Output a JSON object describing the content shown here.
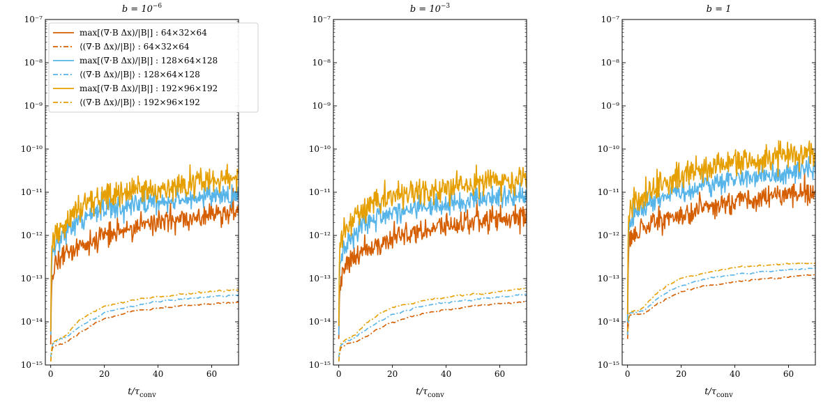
{
  "figure": {
    "xlabel": "t/τ_conv",
    "xlabel_main": "t/τ",
    "xlabel_sub": "conv"
  },
  "legend": {
    "entries": [
      {
        "label": "max[(∇·B Δx)/|B|] : 64×32×64",
        "color": "#D55E00",
        "style": "solid"
      },
      {
        "label": "⟨(∇·B Δx)/|B|⟩ : 64×32×64",
        "color": "#D55E00",
        "style": "dashdot"
      },
      {
        "label": "max[(∇·B Δx)/|B|] : 128×64×128",
        "color": "#56B4E9",
        "style": "solid"
      },
      {
        "label": "⟨(∇·B Δx)/|B|⟩ : 128×64×128",
        "color": "#56B4E9",
        "style": "dashdot"
      },
      {
        "label": "max[(∇·B Δx)/|B|] : 192×96×192",
        "color": "#E69F00",
        "style": "solid"
      },
      {
        "label": "⟨(∇·B Δx)/|B|⟩ : 192×96×192",
        "color": "#E69F00",
        "style": "dashdot"
      }
    ]
  },
  "chart_data": [
    {
      "type": "line",
      "title": "b = 10⁻⁶",
      "title_text": "b = 10",
      "title_exp": "−6",
      "xlabel": "t/τ_conv",
      "ylabel": "",
      "xlim": [
        -2,
        70
      ],
      "ylim": [
        1e-15,
        1e-07
      ],
      "yscale": "log",
      "xticks": [
        0,
        20,
        40,
        60
      ],
      "yticks": [
        "10⁻¹⁵",
        "10⁻¹⁴",
        "10⁻¹³",
        "10⁻¹²",
        "10⁻¹¹",
        "10⁻¹⁰",
        "10⁻⁹",
        "10⁻⁸",
        "10⁻⁷"
      ],
      "legend_position": "upper-left",
      "series": [
        {
          "name": "max[(∇·B Δx)/|B|] : 64×32×64",
          "color": "#D55E00",
          "style": "solid",
          "noise": 0.13,
          "x": [
            0,
            0.3,
            0.8,
            2,
            5,
            10,
            15,
            20,
            30,
            40,
            50,
            60,
            70
          ],
          "y": [
            3e-15,
            7e-14,
            1.2e-13,
            2.5e-13,
            3e-13,
            5e-13,
            7e-13,
            1e-12,
            1.5e-12,
            2e-12,
            2.5e-12,
            3e-12,
            3.5e-12
          ]
        },
        {
          "name": "⟨(∇·B Δx)/|B|⟩ : 64×32×64",
          "color": "#D55E00",
          "style": "dashdot",
          "noise": 0.02,
          "x": [
            0,
            0.5,
            1,
            3,
            6,
            10,
            15,
            20,
            30,
            40,
            50,
            60,
            70
          ],
          "y": [
            1.2e-15,
            2.4e-15,
            2.7e-15,
            3e-15,
            3.5e-15,
            5e-15,
            8e-15,
            1.2e-14,
            1.7e-14,
            2.1e-14,
            2.4e-14,
            2.6e-14,
            2.8e-14
          ]
        },
        {
          "name": "max[(∇·B Δx)/|B|] : 128×64×128",
          "color": "#56B4E9",
          "style": "solid",
          "noise": 0.13,
          "x": [
            0,
            0.3,
            0.8,
            2,
            5,
            10,
            15,
            20,
            30,
            40,
            50,
            60,
            70
          ],
          "y": [
            5e-15,
            2e-13,
            4e-13,
            6e-13,
            1e-12,
            2e-12,
            3e-12,
            4e-12,
            5e-12,
            6e-12,
            7e-12,
            8e-12,
            9e-12
          ]
        },
        {
          "name": "⟨(∇·B Δx)/|B|⟩ : 128×64×128",
          "color": "#56B4E9",
          "style": "dashdot",
          "noise": 0.02,
          "x": [
            0,
            0.5,
            1,
            3,
            6,
            10,
            15,
            20,
            30,
            40,
            50,
            60,
            70
          ],
          "y": [
            1.5e-15,
            2.8e-15,
            3.2e-15,
            3.8e-15,
            4.5e-15,
            7e-15,
            1.1e-14,
            1.6e-14,
            2.3e-14,
            2.9e-14,
            3.4e-14,
            3.8e-14,
            4.2e-14
          ]
        },
        {
          "name": "max[(∇·B Δx)/|B|] : 192×96×192",
          "color": "#E69F00",
          "style": "solid",
          "noise": 0.16,
          "x": [
            0,
            0.3,
            0.8,
            2,
            5,
            10,
            15,
            20,
            30,
            40,
            50,
            60,
            70
          ],
          "y": [
            6e-15,
            5e-13,
            8e-13,
            1e-12,
            2e-12,
            4e-12,
            6e-12,
            8e-12,
            1e-11,
            1.3e-11,
            1.5e-11,
            1.8e-11,
            2e-11
          ]
        },
        {
          "name": "⟨(∇·B Δx)/|B|⟩ : 192×96×192",
          "color": "#E69F00",
          "style": "dashdot",
          "noise": 0.02,
          "x": [
            0,
            0.5,
            1,
            3,
            6,
            10,
            15,
            20,
            30,
            40,
            50,
            60,
            70
          ],
          "y": [
            1.2e-15,
            3e-15,
            3.5e-15,
            4e-15,
            5e-15,
            1e-14,
            1.6e-14,
            2.3e-14,
            3.1e-14,
            3.8e-14,
            4.4e-14,
            5e-14,
            5.6e-14
          ]
        }
      ]
    },
    {
      "type": "line",
      "title": "b = 10⁻³",
      "title_text": "b = 10",
      "title_exp": "−3",
      "xlabel": "t/τ_conv",
      "ylabel": "",
      "xlim": [
        -2,
        70
      ],
      "ylim": [
        1e-15,
        1e-07
      ],
      "yscale": "log",
      "xticks": [
        0,
        20,
        40,
        60
      ],
      "yticks": [
        "10⁻¹⁵",
        "10⁻¹⁴",
        "10⁻¹³",
        "10⁻¹²",
        "10⁻¹¹",
        "10⁻¹⁰",
        "10⁻⁹",
        "10⁻⁸",
        "10⁻⁷"
      ],
      "legend_position": "none",
      "series": [
        {
          "name": "max[(∇·B Δx)/|B|] : 64×32×64",
          "color": "#D55E00",
          "style": "solid",
          "noise": 0.13,
          "x": [
            0,
            0.3,
            0.8,
            2,
            5,
            10,
            15,
            20,
            30,
            40,
            50,
            60,
            70
          ],
          "y": [
            4e-15,
            6e-14,
            1e-13,
            2e-13,
            3e-13,
            4.5e-13,
            6e-13,
            8e-13,
            1.2e-12,
            1.6e-12,
            2e-12,
            2.4e-12,
            2.6e-12
          ]
        },
        {
          "name": "⟨(∇·B Δx)/|B|⟩ : 64×32×64",
          "color": "#D55E00",
          "style": "dashdot",
          "noise": 0.02,
          "x": [
            0,
            0.5,
            1,
            3,
            6,
            10,
            15,
            20,
            30,
            40,
            50,
            60,
            70
          ],
          "y": [
            1.2e-15,
            2.3e-15,
            2.6e-15,
            3e-15,
            3.4e-15,
            4.5e-15,
            7e-15,
            1e-14,
            1.5e-14,
            1.9e-14,
            2.3e-14,
            2.6e-14,
            3e-14
          ]
        },
        {
          "name": "max[(∇·B Δx)/|B|] : 128×64×128",
          "color": "#56B4E9",
          "style": "solid",
          "noise": 0.13,
          "x": [
            0,
            0.3,
            0.8,
            2,
            5,
            10,
            15,
            20,
            30,
            40,
            50,
            60,
            70
          ],
          "y": [
            5e-15,
            2e-13,
            3e-13,
            5e-13,
            9e-13,
            1.8e-12,
            2.8e-12,
            3.5e-12,
            4.5e-12,
            5.5e-12,
            6.5e-12,
            7.5e-12,
            9e-12
          ]
        },
        {
          "name": "⟨(∇·B Δx)/|B|⟩ : 128×64×128",
          "color": "#56B4E9",
          "style": "dashdot",
          "noise": 0.02,
          "x": [
            0,
            0.5,
            1,
            3,
            6,
            10,
            15,
            20,
            30,
            40,
            50,
            60,
            70
          ],
          "y": [
            1.5e-15,
            2.6e-15,
            3e-15,
            3.6e-15,
            4.3e-15,
            6.5e-15,
            1e-14,
            1.5e-14,
            2.2e-14,
            2.8e-14,
            3.3e-14,
            3.8e-14,
            4.3e-14
          ]
        },
        {
          "name": "max[(∇·B Δx)/|B|] : 192×96×192",
          "color": "#E69F00",
          "style": "solid",
          "noise": 0.16,
          "x": [
            0,
            0.3,
            0.8,
            2,
            5,
            10,
            15,
            20,
            30,
            40,
            50,
            60,
            70
          ],
          "y": [
            8e-15,
            6e-13,
            9e-13,
            1.1e-12,
            2e-12,
            4e-12,
            6e-12,
            8e-12,
            1e-11,
            1.2e-11,
            1.5e-11,
            1.8e-11,
            2.2e-11
          ]
        },
        {
          "name": "⟨(∇·B Δx)/|B|⟩ : 192×96×192",
          "color": "#E69F00",
          "style": "dashdot",
          "noise": 0.02,
          "x": [
            0,
            0.5,
            1,
            3,
            6,
            10,
            15,
            20,
            30,
            40,
            50,
            60,
            70
          ],
          "y": [
            1.2e-15,
            2.8e-15,
            3.3e-15,
            4e-15,
            5e-15,
            9e-15,
            1.5e-14,
            2.2e-14,
            3e-14,
            3.7e-14,
            4.4e-14,
            5e-14,
            5.8e-14
          ]
        }
      ]
    },
    {
      "type": "line",
      "title": "b = 1",
      "title_text": "b = 1",
      "title_exp": "",
      "xlabel": "t/τ_conv",
      "ylabel": "",
      "xlim": [
        -2,
        70
      ],
      "ylim": [
        1e-15,
        1e-07
      ],
      "yscale": "log",
      "xticks": [
        0,
        20,
        40,
        60
      ],
      "yticks": [
        "10⁻¹⁵",
        "10⁻¹⁴",
        "10⁻¹³",
        "10⁻¹²",
        "10⁻¹¹",
        "10⁻¹⁰",
        "10⁻⁹",
        "10⁻⁸",
        "10⁻⁷"
      ],
      "legend_position": "none",
      "series": [
        {
          "name": "max[(∇·B Δx)/|B|] : 64×32×64",
          "color": "#D55E00",
          "style": "solid",
          "noise": 0.13,
          "x": [
            0,
            0.3,
            0.8,
            2,
            5,
            10,
            15,
            20,
            30,
            40,
            50,
            60,
            70
          ],
          "y": [
            5e-15,
            4e-13,
            8e-13,
            1.2e-12,
            1.5e-12,
            2e-12,
            2.5e-12,
            3e-12,
            4.5e-12,
            6e-12,
            7.5e-12,
            9e-12,
            1e-11
          ]
        },
        {
          "name": "⟨(∇·B Δx)/|B|⟩ : 64×32×64",
          "color": "#D55E00",
          "style": "dashdot",
          "noise": 0.02,
          "x": [
            0,
            0.5,
            1,
            3,
            6,
            10,
            15,
            20,
            30,
            40,
            50,
            60,
            70
          ],
          "y": [
            4e-15,
            1.3e-14,
            1.45e-14,
            1.5e-14,
            1.55e-14,
            2.3e-14,
            3.5e-14,
            5e-14,
            7e-14,
            8.5e-14,
            1e-13,
            1.1e-13,
            1.25e-13
          ]
        },
        {
          "name": "max[(∇·B Δx)/|B|] : 128×64×128",
          "color": "#56B4E9",
          "style": "solid",
          "noise": 0.13,
          "x": [
            0,
            0.3,
            0.8,
            2,
            5,
            10,
            15,
            20,
            30,
            40,
            50,
            60,
            70
          ],
          "y": [
            1e-14,
            1.2e-12,
            2e-12,
            2.8e-12,
            4e-12,
            6e-12,
            8e-12,
            1e-11,
            1.5e-11,
            2e-11,
            2.5e-11,
            3e-11,
            3.5e-11
          ]
        },
        {
          "name": "⟨(∇·B Δx)/|B|⟩ : 128×64×128",
          "color": "#56B4E9",
          "style": "dashdot",
          "noise": 0.02,
          "x": [
            0,
            0.5,
            1,
            3,
            6,
            10,
            15,
            20,
            30,
            40,
            50,
            60,
            70
          ],
          "y": [
            5e-15,
            1.4e-14,
            1.6e-14,
            1.7e-14,
            1.8e-14,
            3e-14,
            5e-14,
            7e-14,
            1e-13,
            1.25e-13,
            1.45e-13,
            1.6e-13,
            1.75e-13
          ]
        },
        {
          "name": "max[(∇·B Δx)/|B|] : 192×96×192",
          "color": "#E69F00",
          "style": "solid",
          "noise": 0.16,
          "x": [
            0,
            0.3,
            0.8,
            2,
            5,
            10,
            15,
            20,
            30,
            40,
            50,
            60,
            70
          ],
          "y": [
            1.5e-14,
            2.5e-12,
            4e-12,
            5e-12,
            7e-12,
            1.2e-11,
            1.8e-11,
            2.5e-11,
            3.5e-11,
            5e-11,
            6e-11,
            7e-11,
            7e-11
          ]
        },
        {
          "name": "⟨(∇·B Δx)/|B|⟩ : 192×96×192",
          "color": "#E69F00",
          "style": "dashdot",
          "noise": 0.02,
          "x": [
            0,
            0.5,
            1,
            3,
            6,
            10,
            15,
            20,
            30,
            40,
            50,
            60,
            70
          ],
          "y": [
            6e-15,
            1.5e-14,
            1.7e-14,
            1.8e-14,
            2.2e-14,
            4e-14,
            7e-14,
            1e-13,
            1.4e-13,
            1.8e-13,
            2e-13,
            2.2e-13,
            2.3e-13
          ]
        }
      ]
    }
  ]
}
